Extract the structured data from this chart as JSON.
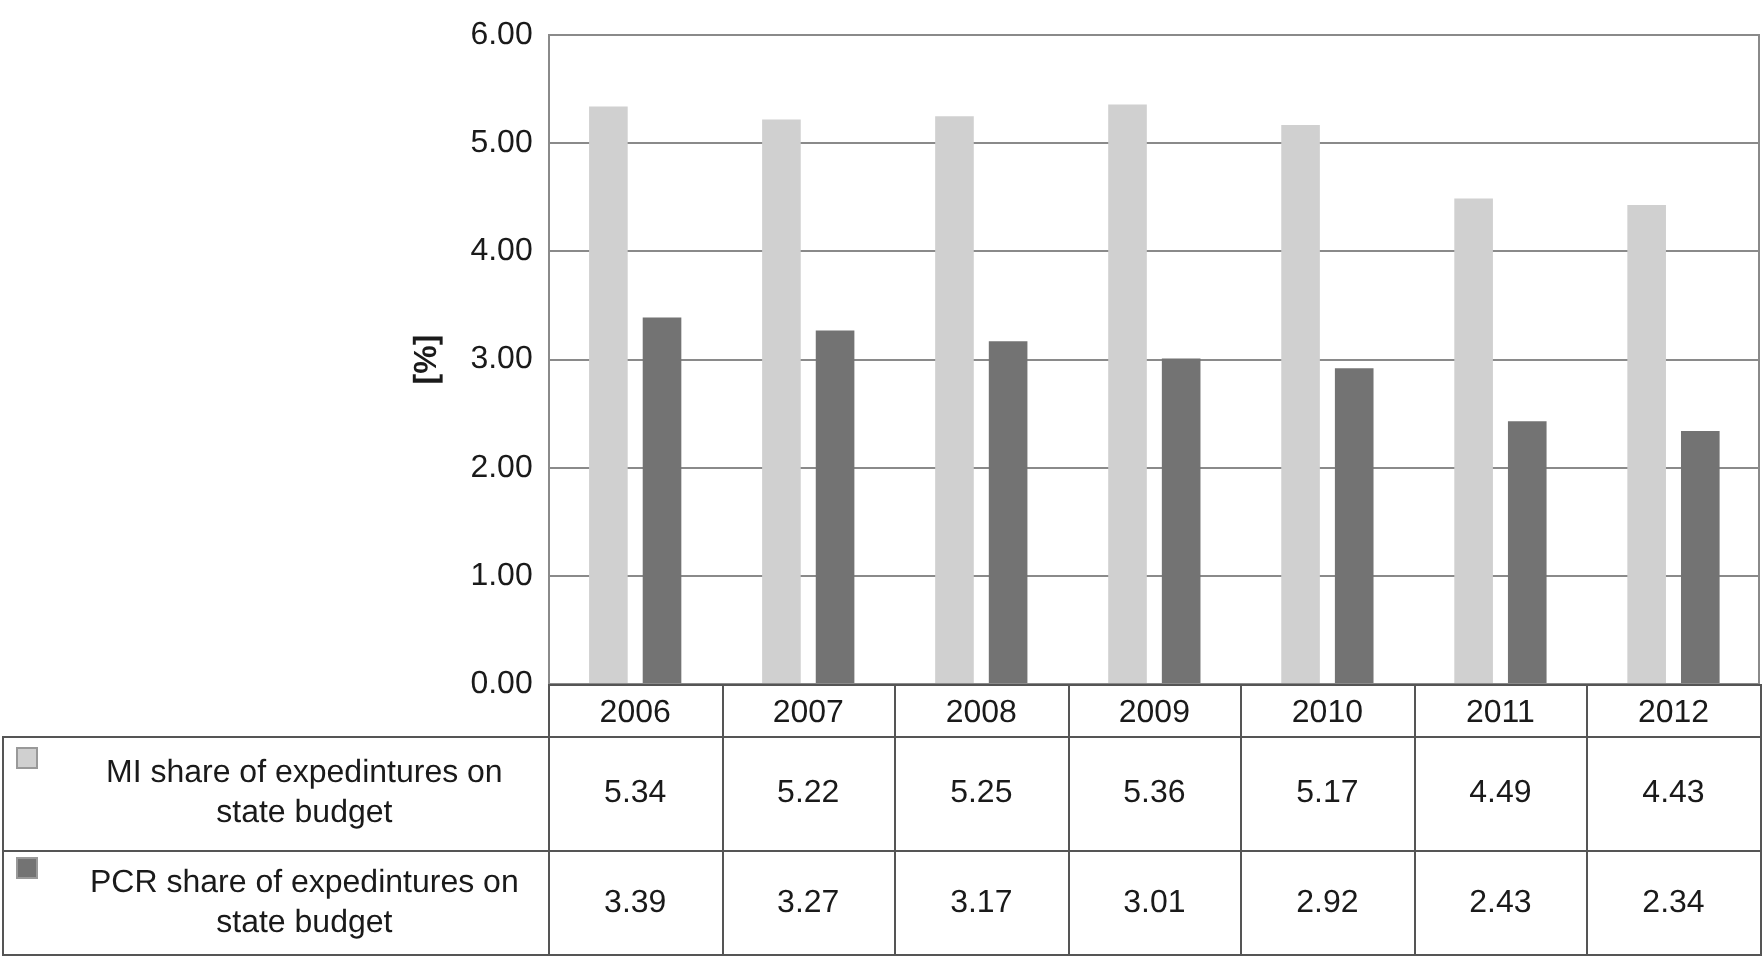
{
  "chart_data": {
    "type": "bar",
    "ylabel": "[%]",
    "categories": [
      "2006",
      "2007",
      "2008",
      "2009",
      "2010",
      "2011",
      "2012"
    ],
    "series": [
      {
        "name": "MI share of expedintures on state budget",
        "color": "#d0d0d0",
        "values": [
          5.34,
          5.22,
          5.25,
          5.36,
          5.17,
          4.49,
          4.43
        ]
      },
      {
        "name": "PCR share of expedintures on state budget",
        "color": "#737373",
        "values": [
          3.39,
          3.27,
          3.17,
          3.01,
          2.92,
          2.43,
          2.34
        ]
      }
    ],
    "ylim": [
      0,
      6
    ],
    "yticks": [
      {
        "value": 0,
        "label": "0.00"
      },
      {
        "value": 1,
        "label": "1.00"
      },
      {
        "value": 2,
        "label": "2.00"
      },
      {
        "value": 3,
        "label": "3.00"
      },
      {
        "value": 4,
        "label": "4.00"
      },
      {
        "value": 5,
        "label": "5.00"
      },
      {
        "value": 6,
        "label": "6.00"
      }
    ],
    "grid": "y",
    "legend": "bottom left",
    "data_labels": true
  }
}
